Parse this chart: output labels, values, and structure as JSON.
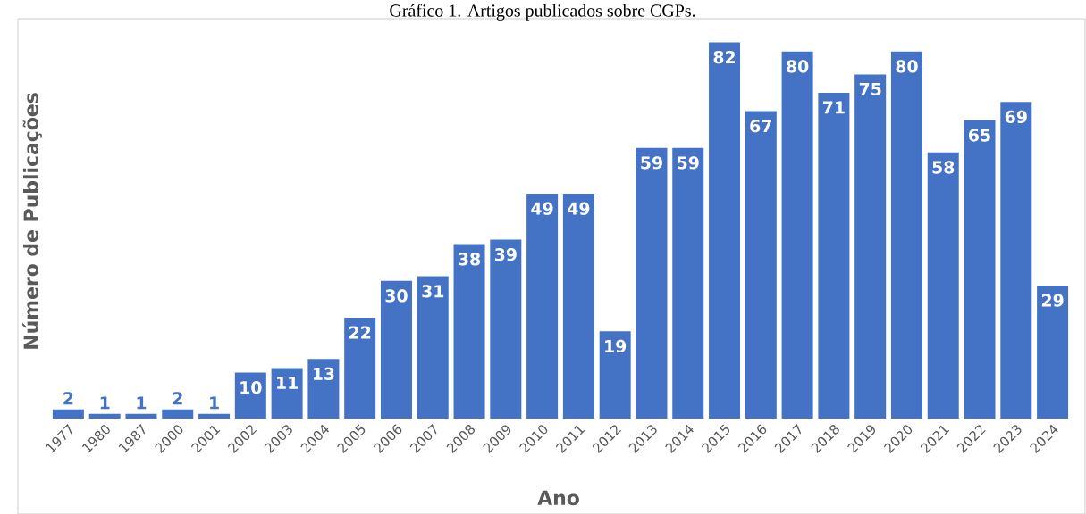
{
  "chart_data": {
    "type": "bar",
    "title": "Gráfico 1. Artigos publicados sobre CGPs.",
    "xlabel": "Ano",
    "ylabel": "Número de Publicações",
    "categories": [
      "1977",
      "1980",
      "1987",
      "2000",
      "2001",
      "2002",
      "2003",
      "2004",
      "2005",
      "2006",
      "2007",
      "2008",
      "2009",
      "2010",
      "2011",
      "2012",
      "2013",
      "2014",
      "2015",
      "2016",
      "2017",
      "2018",
      "2019",
      "2020",
      "2021",
      "2022",
      "2023",
      "2024"
    ],
    "values": [
      2,
      1,
      1,
      2,
      1,
      10,
      11,
      13,
      22,
      30,
      31,
      38,
      39,
      49,
      49,
      19,
      59,
      59,
      82,
      67,
      80,
      71,
      75,
      80,
      58,
      65,
      69,
      29
    ],
    "color": "#4472c4",
    "data_labels": true
  }
}
